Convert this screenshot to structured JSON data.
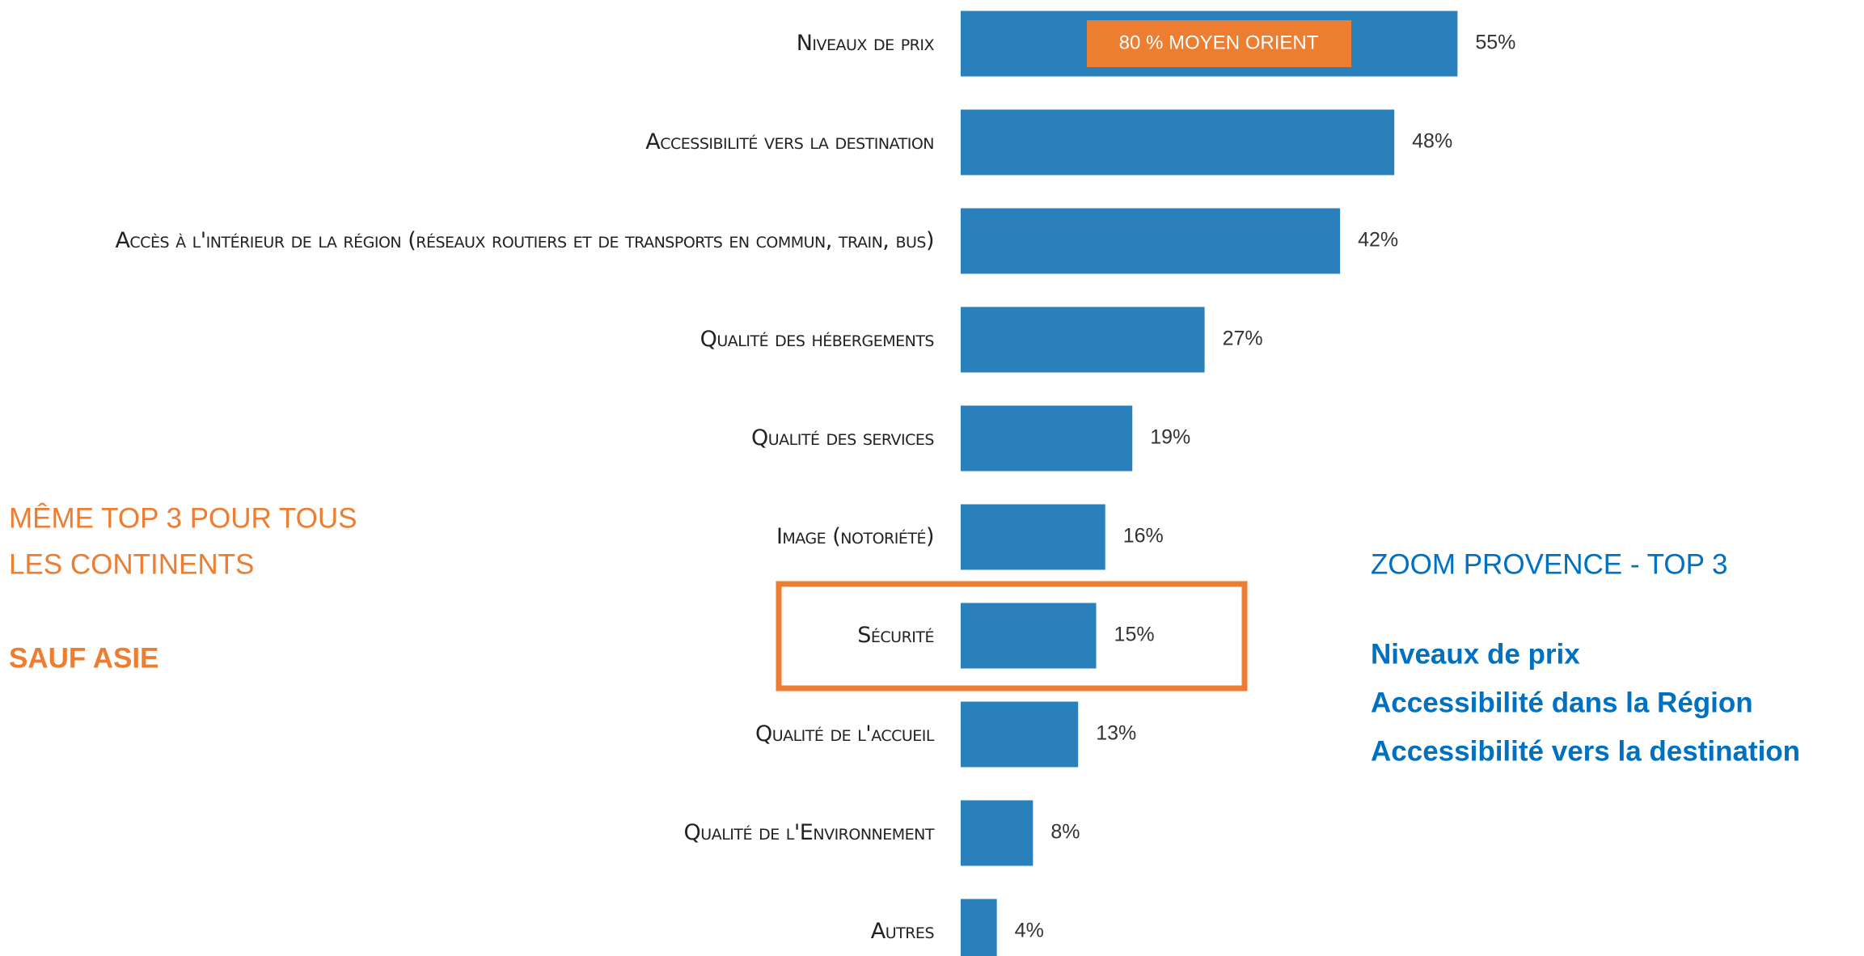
{
  "chart_data": {
    "type": "bar",
    "orientation": "horizontal",
    "categories": [
      "Niveaux de prix",
      "Accessibilité vers la destination",
      "Accès à l'intérieur de la région (réseaux routiers et de transports en commun, train, bus)",
      "Qualité des hébergements",
      "Qualité des services",
      "Image (notoriété)",
      "Sécurité",
      "Qualité de l'accueil",
      "Qualité de l'Environnement",
      "Autres"
    ],
    "values": [
      55,
      48,
      42,
      27,
      19,
      16,
      15,
      13,
      8,
      4
    ],
    "value_labels": [
      "55%",
      "48%",
      "42%",
      "27%",
      "19%",
      "16%",
      "15%",
      "13%",
      "8%",
      "4%"
    ],
    "color": "#2a80ba",
    "bar_note": {
      "category": "Niveaux de prix",
      "text": "80 % MOYEN ORIENT",
      "color": "#ed7d31"
    },
    "highlight": {
      "category": "Sécurité",
      "color": "#ed7d31"
    }
  },
  "left_note": {
    "lines": [
      "MÊME TOP 3 POUR TOUS",
      "LES CONTINENTS"
    ],
    "emphasis": "SAUF ASIE",
    "color": "#ed7d31"
  },
  "right_note": {
    "title": "ZOOM PROVENCE - TOP 3",
    "items": [
      "Niveaux de prix",
      "Accessibilité dans la Région",
      "Accessibilité vers la destination"
    ],
    "color": "#0070c0"
  }
}
